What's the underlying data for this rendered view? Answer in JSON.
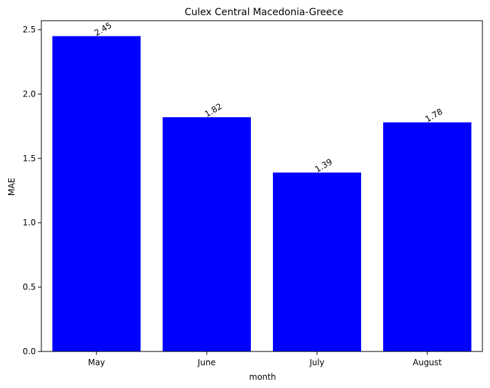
{
  "chart_data": {
    "type": "bar",
    "title": "Culex Central Macedonia-Greece",
    "xlabel": "month",
    "ylabel": "MAE",
    "categories": [
      "May",
      "June",
      "July",
      "August"
    ],
    "values": [
      2.45,
      1.82,
      1.39,
      1.78
    ],
    "value_labels": [
      "2.45",
      "1.82",
      "1.39",
      "1.78"
    ],
    "ylim": [
      0,
      2.57
    ],
    "yticks": [
      0.0,
      0.5,
      1.0,
      1.5,
      2.0,
      2.5
    ],
    "ytick_labels": [
      "0.0",
      "0.5",
      "1.0",
      "1.5",
      "2.0",
      "2.5"
    ],
    "bar_color": "#0000ff",
    "grid": false,
    "legend": "none"
  }
}
